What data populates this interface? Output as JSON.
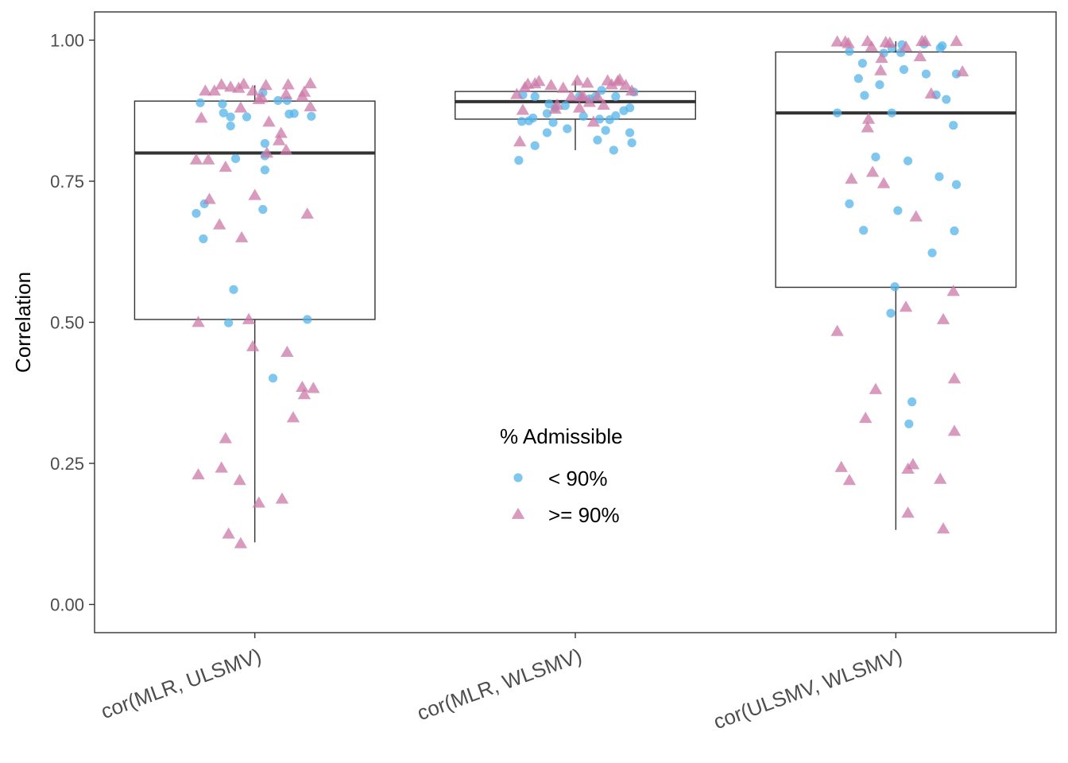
{
  "colors": {
    "below": "#56B4E9",
    "above": "#CC79A7",
    "box": "#333333",
    "panel": "#333333"
  },
  "chart_data": {
    "type": "boxplot-with-jitter",
    "ylabel": "Correlation",
    "ylim": [
      -0.05,
      1.05
    ],
    "yticks": [
      {
        "value": 0.0,
        "label": "0.00"
      },
      {
        "value": 0.25,
        "label": "0.25"
      },
      {
        "value": 0.5,
        "label": "0.50"
      },
      {
        "value": 0.75,
        "label": "0.75"
      },
      {
        "value": 1.0,
        "label": "1.00"
      }
    ],
    "categories": [
      "cor(MLR, ULSMV)",
      "cor(MLR, WLSMV)",
      "cor(ULSMV, WLSMV)"
    ],
    "legend": {
      "title": "% Admissible",
      "position": "center",
      "entries": [
        {
          "key": "below",
          "label": "< 90%",
          "shape": "circle"
        },
        {
          "key": "above",
          "label": ">= 90%",
          "shape": "triangle"
        }
      ]
    },
    "boxes": [
      {
        "category": "cor(MLR, ULSMV)",
        "whisker_low": 0.11,
        "q1": 0.505,
        "median": 0.8,
        "q3": 0.892,
        "whisker_high": 0.92
      },
      {
        "category": "cor(MLR, WLSMV)",
        "whisker_low": 0.805,
        "q1": 0.86,
        "median": 0.891,
        "q3": 0.909,
        "whisker_high": 0.928
      },
      {
        "category": "cor(ULSMV, WLSMV)",
        "whisker_low": 0.132,
        "q1": 0.562,
        "median": 0.871,
        "q3": 0.979,
        "whisker_high": 0.998
      }
    ],
    "points": [
      [
        {
          "g": "below",
          "dx": -0.29,
          "y": 0.693
        },
        {
          "g": "below",
          "dx": -0.27,
          "y": 0.889
        },
        {
          "g": "below",
          "dx": -0.255,
          "y": 0.648
        },
        {
          "g": "below",
          "dx": -0.25,
          "y": 0.71
        },
        {
          "g": "below",
          "dx": -0.16,
          "y": 0.887
        },
        {
          "g": "below",
          "dx": -0.155,
          "y": 0.871
        },
        {
          "g": "below",
          "dx": -0.13,
          "y": 0.499
        },
        {
          "g": "below",
          "dx": -0.12,
          "y": 0.864
        },
        {
          "g": "below",
          "dx": -0.12,
          "y": 0.848
        },
        {
          "g": "below",
          "dx": -0.105,
          "y": 0.558
        },
        {
          "g": "below",
          "dx": -0.095,
          "y": 0.79
        },
        {
          "g": "below",
          "dx": -0.04,
          "y": 0.864
        },
        {
          "g": "below",
          "dx": 0.04,
          "y": 0.907
        },
        {
          "g": "below",
          "dx": 0.04,
          "y": 0.7
        },
        {
          "g": "below",
          "dx": 0.05,
          "y": 0.817
        },
        {
          "g": "below",
          "dx": 0.05,
          "y": 0.795
        },
        {
          "g": "below",
          "dx": 0.05,
          "y": 0.77
        },
        {
          "g": "below",
          "dx": 0.09,
          "y": 0.401
        },
        {
          "g": "below",
          "dx": 0.115,
          "y": 0.893
        },
        {
          "g": "below",
          "dx": 0.16,
          "y": 0.893
        },
        {
          "g": "below",
          "dx": 0.17,
          "y": 0.869
        },
        {
          "g": "below",
          "dx": 0.195,
          "y": 0.87
        },
        {
          "g": "below",
          "dx": 0.26,
          "y": 0.505
        },
        {
          "g": "below",
          "dx": 0.28,
          "y": 0.865
        },
        {
          "g": "above",
          "dx": -0.29,
          "y": 0.788
        },
        {
          "g": "above",
          "dx": -0.28,
          "y": 0.5
        },
        {
          "g": "above",
          "dx": -0.28,
          "y": 0.23
        },
        {
          "g": "above",
          "dx": -0.265,
          "y": 0.862
        },
        {
          "g": "above",
          "dx": -0.245,
          "y": 0.91
        },
        {
          "g": "above",
          "dx": -0.23,
          "y": 0.788
        },
        {
          "g": "above",
          "dx": -0.225,
          "y": 0.718
        },
        {
          "g": "above",
          "dx": -0.2,
          "y": 0.91
        },
        {
          "g": "above",
          "dx": -0.175,
          "y": 0.673
        },
        {
          "g": "above",
          "dx": -0.165,
          "y": 0.921
        },
        {
          "g": "above",
          "dx": -0.165,
          "y": 0.242
        },
        {
          "g": "above",
          "dx": -0.145,
          "y": 0.775
        },
        {
          "g": "above",
          "dx": -0.145,
          "y": 0.294
        },
        {
          "g": "above",
          "dx": -0.13,
          "y": 0.125
        },
        {
          "g": "above",
          "dx": -0.12,
          "y": 0.917
        },
        {
          "g": "above",
          "dx": -0.08,
          "y": 0.915
        },
        {
          "g": "above",
          "dx": -0.075,
          "y": 0.22
        },
        {
          "g": "above",
          "dx": -0.07,
          "y": 0.88
        },
        {
          "g": "above",
          "dx": -0.065,
          "y": 0.65
        },
        {
          "g": "above",
          "dx": -0.07,
          "y": 0.108
        },
        {
          "g": "above",
          "dx": -0.055,
          "y": 0.922
        },
        {
          "g": "above",
          "dx": -0.03,
          "y": 0.505
        },
        {
          "g": "above",
          "dx": -0.01,
          "y": 0.91
        },
        {
          "g": "above",
          "dx": -0.01,
          "y": 0.457
        },
        {
          "g": "above",
          "dx": 0.0,
          "y": 0.725
        },
        {
          "g": "above",
          "dx": 0.02,
          "y": 0.895
        },
        {
          "g": "above",
          "dx": 0.02,
          "y": 0.18
        },
        {
          "g": "above",
          "dx": 0.035,
          "y": 0.898
        },
        {
          "g": "above",
          "dx": 0.055,
          "y": 0.92
        },
        {
          "g": "above",
          "dx": 0.06,
          "y": 0.8
        },
        {
          "g": "above",
          "dx": 0.07,
          "y": 0.855
        },
        {
          "g": "above",
          "dx": 0.12,
          "y": 0.822
        },
        {
          "g": "above",
          "dx": 0.13,
          "y": 0.835
        },
        {
          "g": "above",
          "dx": 0.135,
          "y": 0.187
        },
        {
          "g": "above",
          "dx": 0.155,
          "y": 0.904
        },
        {
          "g": "above",
          "dx": 0.155,
          "y": 0.805
        },
        {
          "g": "above",
          "dx": 0.16,
          "y": 0.447
        },
        {
          "g": "above",
          "dx": 0.165,
          "y": 0.921
        },
        {
          "g": "above",
          "dx": 0.19,
          "y": 0.331
        },
        {
          "g": "above",
          "dx": 0.235,
          "y": 0.9
        },
        {
          "g": "above",
          "dx": 0.235,
          "y": 0.385
        },
        {
          "g": "above",
          "dx": 0.245,
          "y": 0.372
        },
        {
          "g": "above",
          "dx": 0.245,
          "y": 0.908
        },
        {
          "g": "above",
          "dx": 0.26,
          "y": 0.692
        },
        {
          "g": "above",
          "dx": 0.275,
          "y": 0.923
        },
        {
          "g": "above",
          "dx": 0.275,
          "y": 0.882
        },
        {
          "g": "above",
          "dx": 0.29,
          "y": 0.383
        }
      ],
      [
        {
          "g": "below",
          "dx": -0.28,
          "y": 0.787
        },
        {
          "g": "below",
          "dx": -0.265,
          "y": 0.856
        },
        {
          "g": "below",
          "dx": -0.26,
          "y": 0.903
        },
        {
          "g": "below",
          "dx": -0.23,
          "y": 0.857
        },
        {
          "g": "below",
          "dx": -0.21,
          "y": 0.862
        },
        {
          "g": "below",
          "dx": -0.2,
          "y": 0.813
        },
        {
          "g": "below",
          "dx": -0.2,
          "y": 0.9
        },
        {
          "g": "below",
          "dx": -0.14,
          "y": 0.836
        },
        {
          "g": "below",
          "dx": -0.14,
          "y": 0.87
        },
        {
          "g": "below",
          "dx": -0.13,
          "y": 0.887
        },
        {
          "g": "below",
          "dx": -0.11,
          "y": 0.854
        },
        {
          "g": "below",
          "dx": -0.1,
          "y": 0.88
        },
        {
          "g": "below",
          "dx": -0.05,
          "y": 0.884
        },
        {
          "g": "below",
          "dx": -0.04,
          "y": 0.843
        },
        {
          "g": "below",
          "dx": 0.02,
          "y": 0.9
        },
        {
          "g": "below",
          "dx": 0.04,
          "y": 0.865
        },
        {
          "g": "below",
          "dx": 0.07,
          "y": 0.896
        },
        {
          "g": "below",
          "dx": 0.1,
          "y": 0.9
        },
        {
          "g": "below",
          "dx": 0.11,
          "y": 0.823
        },
        {
          "g": "below",
          "dx": 0.12,
          "y": 0.86
        },
        {
          "g": "below",
          "dx": 0.13,
          "y": 0.911
        },
        {
          "g": "below",
          "dx": 0.15,
          "y": 0.84
        },
        {
          "g": "below",
          "dx": 0.17,
          "y": 0.859
        },
        {
          "g": "below",
          "dx": 0.19,
          "y": 0.805
        },
        {
          "g": "below",
          "dx": 0.2,
          "y": 0.9
        },
        {
          "g": "below",
          "dx": 0.2,
          "y": 0.866
        },
        {
          "g": "below",
          "dx": 0.24,
          "y": 0.875
        },
        {
          "g": "below",
          "dx": 0.27,
          "y": 0.88
        },
        {
          "g": "below",
          "dx": 0.27,
          "y": 0.836
        },
        {
          "g": "below",
          "dx": 0.28,
          "y": 0.818
        },
        {
          "g": "below",
          "dx": 0.29,
          "y": 0.908
        },
        {
          "g": "above",
          "dx": -0.29,
          "y": 0.904
        },
        {
          "g": "above",
          "dx": -0.275,
          "y": 0.82
        },
        {
          "g": "above",
          "dx": -0.26,
          "y": 0.876
        },
        {
          "g": "above",
          "dx": -0.25,
          "y": 0.916
        },
        {
          "g": "above",
          "dx": -0.235,
          "y": 0.922
        },
        {
          "g": "above",
          "dx": -0.2,
          "y": 0.923
        },
        {
          "g": "above",
          "dx": -0.18,
          "y": 0.927
        },
        {
          "g": "above",
          "dx": -0.12,
          "y": 0.92
        },
        {
          "g": "above",
          "dx": -0.1,
          "y": 0.878
        },
        {
          "g": "above",
          "dx": -0.09,
          "y": 0.885
        },
        {
          "g": "above",
          "dx": -0.06,
          "y": 0.915
        },
        {
          "g": "above",
          "dx": -0.02,
          "y": 0.9
        },
        {
          "g": "above",
          "dx": 0.01,
          "y": 0.928
        },
        {
          "g": "above",
          "dx": 0.02,
          "y": 0.88
        },
        {
          "g": "above",
          "dx": 0.03,
          "y": 0.9
        },
        {
          "g": "above",
          "dx": 0.04,
          "y": 0.9
        },
        {
          "g": "above",
          "dx": 0.06,
          "y": 0.924
        },
        {
          "g": "above",
          "dx": 0.07,
          "y": 0.89
        },
        {
          "g": "above",
          "dx": 0.09,
          "y": 0.855
        },
        {
          "g": "above",
          "dx": 0.11,
          "y": 0.9
        },
        {
          "g": "above",
          "dx": 0.14,
          "y": 0.885
        },
        {
          "g": "above",
          "dx": 0.16,
          "y": 0.928
        },
        {
          "g": "above",
          "dx": 0.18,
          "y": 0.921
        },
        {
          "g": "above",
          "dx": 0.21,
          "y": 0.927
        },
        {
          "g": "above",
          "dx": 0.22,
          "y": 0.93
        },
        {
          "g": "above",
          "dx": 0.25,
          "y": 0.92
        },
        {
          "g": "above",
          "dx": 0.28,
          "y": 0.91
        }
      ],
      [
        {
          "g": "below",
          "dx": -0.29,
          "y": 0.871
        },
        {
          "g": "below",
          "dx": -0.23,
          "y": 0.98
        },
        {
          "g": "below",
          "dx": -0.23,
          "y": 0.71
        },
        {
          "g": "below",
          "dx": -0.185,
          "y": 0.932
        },
        {
          "g": "below",
          "dx": -0.165,
          "y": 0.959
        },
        {
          "g": "below",
          "dx": -0.16,
          "y": 0.663
        },
        {
          "g": "below",
          "dx": -0.155,
          "y": 0.902
        },
        {
          "g": "below",
          "dx": -0.08,
          "y": 0.921
        },
        {
          "g": "below",
          "dx": -0.1,
          "y": 0.793
        },
        {
          "g": "below",
          "dx": -0.06,
          "y": 0.977
        },
        {
          "g": "below",
          "dx": -0.02,
          "y": 0.986
        },
        {
          "g": "below",
          "dx": -0.02,
          "y": 0.871
        },
        {
          "g": "below",
          "dx": -0.005,
          "y": 0.563
        },
        {
          "g": "below",
          "dx": -0.025,
          "y": 0.516
        },
        {
          "g": "below",
          "dx": 0.01,
          "y": 0.698
        },
        {
          "g": "below",
          "dx": 0.025,
          "y": 0.978
        },
        {
          "g": "below",
          "dx": 0.03,
          "y": 0.992
        },
        {
          "g": "below",
          "dx": 0.04,
          "y": 0.948
        },
        {
          "g": "below",
          "dx": 0.06,
          "y": 0.786
        },
        {
          "g": "below",
          "dx": 0.065,
          "y": 0.32
        },
        {
          "g": "below",
          "dx": 0.08,
          "y": 0.359
        },
        {
          "g": "below",
          "dx": 0.14,
          "y": 0.993
        },
        {
          "g": "below",
          "dx": 0.15,
          "y": 0.94
        },
        {
          "g": "below",
          "dx": 0.18,
          "y": 0.623
        },
        {
          "g": "below",
          "dx": 0.2,
          "y": 0.903
        },
        {
          "g": "below",
          "dx": 0.215,
          "y": 0.758
        },
        {
          "g": "below",
          "dx": 0.22,
          "y": 0.986
        },
        {
          "g": "below",
          "dx": 0.23,
          "y": 0.99
        },
        {
          "g": "below",
          "dx": 0.25,
          "y": 0.895
        },
        {
          "g": "below",
          "dx": 0.285,
          "y": 0.849
        },
        {
          "g": "below",
          "dx": 0.29,
          "y": 0.662
        },
        {
          "g": "below",
          "dx": 0.3,
          "y": 0.94
        },
        {
          "g": "below",
          "dx": 0.3,
          "y": 0.744
        },
        {
          "g": "above",
          "dx": -0.29,
          "y": 0.997
        },
        {
          "g": "above",
          "dx": -0.29,
          "y": 0.484
        },
        {
          "g": "above",
          "dx": -0.27,
          "y": 0.243
        },
        {
          "g": "above",
          "dx": -0.25,
          "y": 0.997
        },
        {
          "g": "above",
          "dx": -0.235,
          "y": 0.994
        },
        {
          "g": "above",
          "dx": -0.23,
          "y": 0.22
        },
        {
          "g": "above",
          "dx": -0.22,
          "y": 0.754
        },
        {
          "g": "above",
          "dx": -0.15,
          "y": 0.33
        },
        {
          "g": "above",
          "dx": -0.14,
          "y": 0.998
        },
        {
          "g": "above",
          "dx": -0.14,
          "y": 0.845
        },
        {
          "g": "above",
          "dx": -0.135,
          "y": 0.86
        },
        {
          "g": "above",
          "dx": -0.12,
          "y": 0.988
        },
        {
          "g": "above",
          "dx": -0.115,
          "y": 0.766
        },
        {
          "g": "above",
          "dx": -0.1,
          "y": 0.381
        },
        {
          "g": "above",
          "dx": -0.075,
          "y": 0.946
        },
        {
          "g": "above",
          "dx": -0.07,
          "y": 0.968
        },
        {
          "g": "above",
          "dx": -0.06,
          "y": 0.746
        },
        {
          "g": "above",
          "dx": -0.05,
          "y": 0.996
        },
        {
          "g": "above",
          "dx": -0.03,
          "y": 0.995
        },
        {
          "g": "above",
          "dx": 0.05,
          "y": 0.527
        },
        {
          "g": "above",
          "dx": 0.05,
          "y": 0.988
        },
        {
          "g": "above",
          "dx": 0.06,
          "y": 0.162
        },
        {
          "g": "above",
          "dx": 0.06,
          "y": 0.24
        },
        {
          "g": "above",
          "dx": 0.085,
          "y": 0.248
        },
        {
          "g": "above",
          "dx": 0.1,
          "y": 0.687
        },
        {
          "g": "above",
          "dx": 0.12,
          "y": 0.971
        },
        {
          "g": "above",
          "dx": 0.13,
          "y": 0.998
        },
        {
          "g": "above",
          "dx": 0.145,
          "y": 0.998
        },
        {
          "g": "above",
          "dx": 0.175,
          "y": 0.905
        },
        {
          "g": "above",
          "dx": 0.22,
          "y": 0.222
        },
        {
          "g": "above",
          "dx": 0.235,
          "y": 0.505
        },
        {
          "g": "above",
          "dx": 0.235,
          "y": 0.134
        },
        {
          "g": "above",
          "dx": 0.285,
          "y": 0.555
        },
        {
          "g": "above",
          "dx": 0.29,
          "y": 0.307
        },
        {
          "g": "above",
          "dx": 0.29,
          "y": 0.4
        },
        {
          "g": "above",
          "dx": 0.3,
          "y": 0.998
        },
        {
          "g": "above",
          "dx": 0.33,
          "y": 0.944
        }
      ]
    ]
  }
}
